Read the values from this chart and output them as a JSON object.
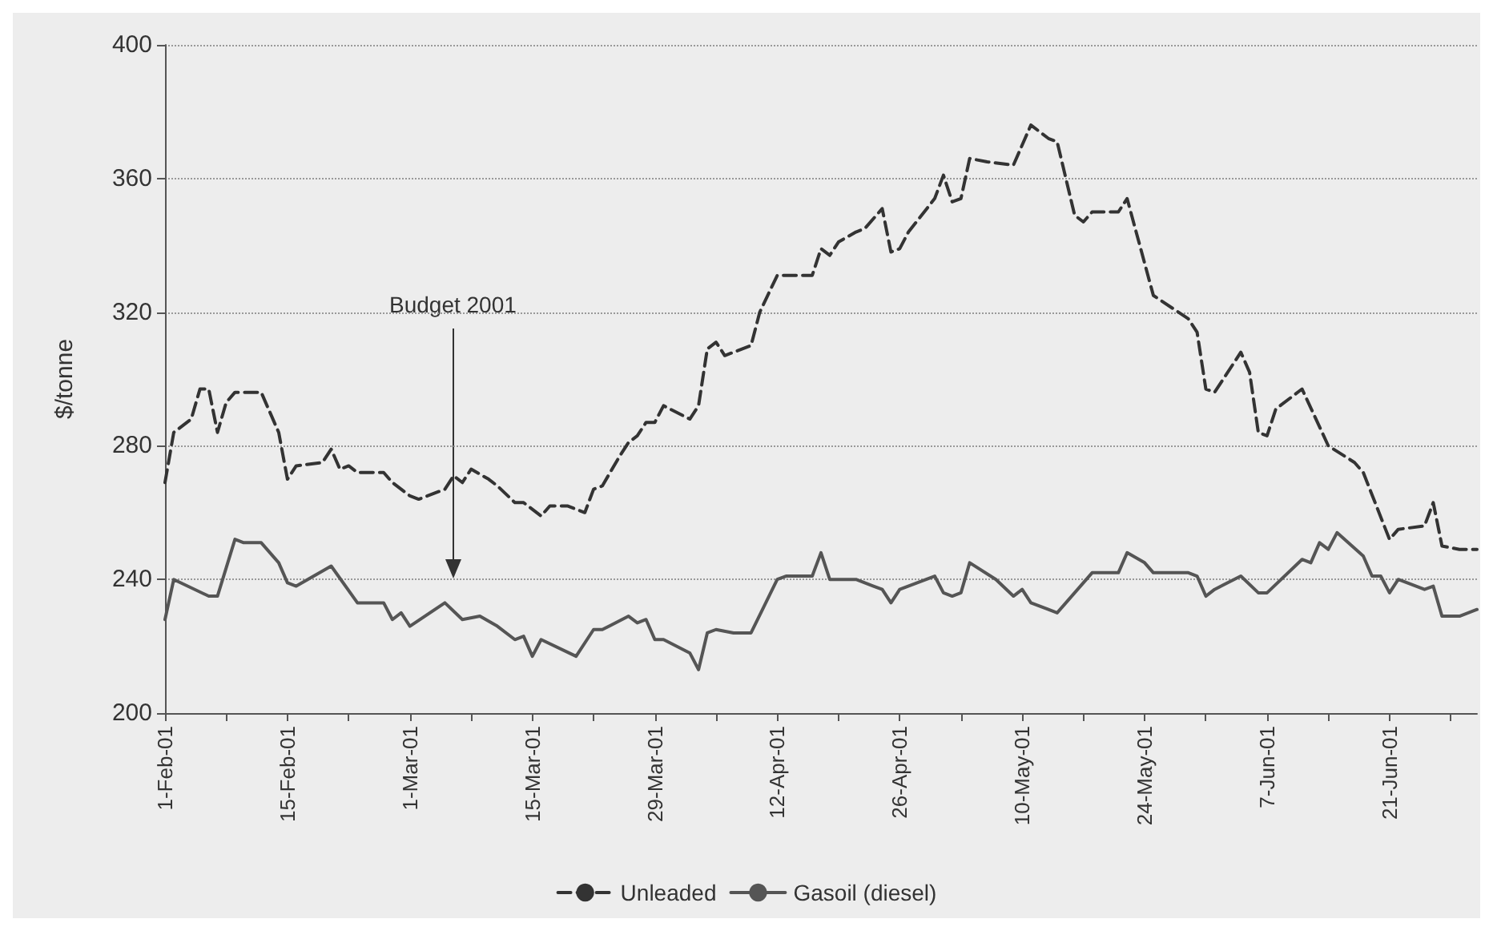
{
  "chart_data": {
    "type": "line",
    "ylabel": "$/tonne",
    "xlim": [
      "2001-02-01",
      "2001-07-01"
    ],
    "ylim": [
      200,
      400
    ],
    "yticks": [
      200,
      240,
      280,
      320,
      360,
      400
    ],
    "xticks": [
      {
        "value": "2001-02-01",
        "label": "1-Feb-01"
      },
      {
        "value": "2001-02-08",
        "label": null
      },
      {
        "value": "2001-02-15",
        "label": "15-Feb-01"
      },
      {
        "value": "2001-02-22",
        "label": null
      },
      {
        "value": "2001-03-01",
        "label": "1-Mar-01"
      },
      {
        "value": "2001-03-08",
        "label": null
      },
      {
        "value": "2001-03-15",
        "label": "15-Mar-01"
      },
      {
        "value": "2001-03-22",
        "label": null
      },
      {
        "value": "2001-03-29",
        "label": "29-Mar-01"
      },
      {
        "value": "2001-04-05",
        "label": null
      },
      {
        "value": "2001-04-12",
        "label": "12-Apr-01"
      },
      {
        "value": "2001-04-19",
        "label": null
      },
      {
        "value": "2001-04-26",
        "label": "26-Apr-01"
      },
      {
        "value": "2001-05-03",
        "label": null
      },
      {
        "value": "2001-05-10",
        "label": "10-May-01"
      },
      {
        "value": "2001-05-17",
        "label": null
      },
      {
        "value": "2001-05-24",
        "label": "24-May-01"
      },
      {
        "value": "2001-05-31",
        "label": null
      },
      {
        "value": "2001-06-07",
        "label": "7-Jun-01"
      },
      {
        "value": "2001-06-14",
        "label": null
      },
      {
        "value": "2001-06-21",
        "label": "21-Jun-01"
      },
      {
        "value": "2001-06-28",
        "label": null
      }
    ],
    "grid": "y",
    "legend": "bottom",
    "marker": "none",
    "annotations": [
      "Budget 2001"
    ],
    "series": [
      {
        "name": "Unleaded",
        "color": "#333333",
        "line_style": "dashed",
        "x": [
          "2001-02-01",
          "2001-02-02",
          "2001-02-04",
          "2001-02-05",
          "2001-02-06",
          "2001-02-07",
          "2001-02-08",
          "2001-02-09",
          "2001-02-12",
          "2001-02-14",
          "2001-02-15",
          "2001-02-16",
          "2001-02-19",
          "2001-02-20",
          "2001-02-21",
          "2001-02-22",
          "2001-02-23",
          "2001-02-26",
          "2001-02-27",
          "2001-03-01",
          "2001-03-02",
          "2001-03-05",
          "2001-03-06",
          "2001-03-07",
          "2001-03-08",
          "2001-03-10",
          "2001-03-11",
          "2001-03-13",
          "2001-03-14",
          "2001-03-16",
          "2001-03-17",
          "2001-03-19",
          "2001-03-21",
          "2001-03-22",
          "2001-03-23",
          "2001-03-25",
          "2001-03-26",
          "2001-03-27",
          "2001-03-28",
          "2001-03-29",
          "2001-03-30",
          "2001-04-02",
          "2001-04-03",
          "2001-04-04",
          "2001-04-05",
          "2001-04-06",
          "2001-04-09",
          "2001-04-10",
          "2001-04-12",
          "2001-04-14",
          "2001-04-16",
          "2001-04-17",
          "2001-04-18",
          "2001-04-19",
          "2001-04-21",
          "2001-04-22",
          "2001-04-24",
          "2001-04-25",
          "2001-04-26",
          "2001-04-27",
          "2001-04-30",
          "2001-05-01",
          "2001-05-02",
          "2001-05-03",
          "2001-05-04",
          "2001-05-06",
          "2001-05-09",
          "2001-05-11",
          "2001-05-13",
          "2001-05-14",
          "2001-05-16",
          "2001-05-17",
          "2001-05-18",
          "2001-05-21",
          "2001-05-22",
          "2001-05-25",
          "2001-05-29",
          "2001-05-30",
          "2001-05-31",
          "2001-06-01",
          "2001-06-04",
          "2001-06-05",
          "2001-06-06",
          "2001-06-07",
          "2001-06-08",
          "2001-06-11",
          "2001-06-14",
          "2001-06-17",
          "2001-06-18",
          "2001-06-21",
          "2001-06-22",
          "2001-06-25",
          "2001-06-26",
          "2001-06-27",
          "2001-06-29",
          "2001-07-01"
        ],
        "values": [
          269,
          284,
          288,
          297,
          297,
          284,
          293,
          296,
          296,
          284,
          270,
          274,
          275,
          279,
          273,
          274,
          272,
          272,
          269,
          265,
          264,
          267,
          271,
          269,
          273,
          270,
          268,
          263,
          263,
          259,
          262,
          262,
          260,
          267,
          268,
          277,
          281,
          283,
          287,
          287,
          292,
          288,
          292,
          309,
          311,
          307,
          310,
          320,
          331,
          331,
          331,
          339,
          337,
          341,
          344,
          345,
          351,
          338,
          339,
          344,
          354,
          361,
          353,
          354,
          366,
          365,
          364,
          376,
          372,
          371,
          349,
          347,
          350,
          350,
          354,
          325,
          318,
          314,
          297,
          296,
          308,
          302,
          284,
          283,
          291,
          297,
          280,
          275,
          272,
          252,
          255,
          256,
          263,
          250,
          249,
          249
        ]
      },
      {
        "name": "Gasoil (diesel)",
        "color": "#555555",
        "line_style": "solid",
        "x": [
          "2001-02-01",
          "2001-02-02",
          "2001-02-06",
          "2001-02-07",
          "2001-02-09",
          "2001-02-10",
          "2001-02-12",
          "2001-02-14",
          "2001-02-15",
          "2001-02-16",
          "2001-02-20",
          "2001-02-23",
          "2001-02-26",
          "2001-02-27",
          "2001-02-28",
          "2001-03-01",
          "2001-03-05",
          "2001-03-07",
          "2001-03-09",
          "2001-03-11",
          "2001-03-13",
          "2001-03-14",
          "2001-03-15",
          "2001-03-16",
          "2001-03-20",
          "2001-03-22",
          "2001-03-23",
          "2001-03-26",
          "2001-03-27",
          "2001-03-28",
          "2001-03-29",
          "2001-03-30",
          "2001-04-02",
          "2001-04-03",
          "2001-04-04",
          "2001-04-05",
          "2001-04-07",
          "2001-04-09",
          "2001-04-12",
          "2001-04-13",
          "2001-04-16",
          "2001-04-17",
          "2001-04-18",
          "2001-04-21",
          "2001-04-23",
          "2001-04-24",
          "2001-04-25",
          "2001-04-26",
          "2001-04-28",
          "2001-04-30",
          "2001-05-01",
          "2001-05-02",
          "2001-05-03",
          "2001-05-04",
          "2001-05-07",
          "2001-05-09",
          "2001-05-10",
          "2001-05-11",
          "2001-05-13",
          "2001-05-14",
          "2001-05-15",
          "2001-05-18",
          "2001-05-21",
          "2001-05-22",
          "2001-05-24",
          "2001-05-25",
          "2001-05-29",
          "2001-05-30",
          "2001-05-31",
          "2001-06-01",
          "2001-06-04",
          "2001-06-06",
          "2001-06-07",
          "2001-06-11",
          "2001-06-12",
          "2001-06-13",
          "2001-06-14",
          "2001-06-15",
          "2001-06-18",
          "2001-06-19",
          "2001-06-20",
          "2001-06-21",
          "2001-06-22",
          "2001-06-25",
          "2001-06-26",
          "2001-06-27",
          "2001-06-29",
          "2001-07-01"
        ],
        "values": [
          228,
          240,
          235,
          235,
          252,
          251,
          251,
          245,
          239,
          238,
          244,
          233,
          233,
          228,
          230,
          226,
          233,
          228,
          229,
          226,
          222,
          223,
          217,
          222,
          217,
          225,
          225,
          229,
          227,
          228,
          222,
          222,
          218,
          213,
          224,
          225,
          224,
          224,
          240,
          241,
          241,
          248,
          240,
          240,
          238,
          237,
          233,
          237,
          239,
          241,
          236,
          235,
          236,
          245,
          240,
          235,
          237,
          233,
          231,
          230,
          233,
          242,
          242,
          248,
          245,
          242,
          242,
          241,
          235,
          237,
          241,
          236,
          236,
          246,
          245,
          251,
          249,
          254,
          247,
          241,
          241,
          236,
          240,
          237,
          238,
          229,
          229,
          231
        ]
      }
    ]
  }
}
